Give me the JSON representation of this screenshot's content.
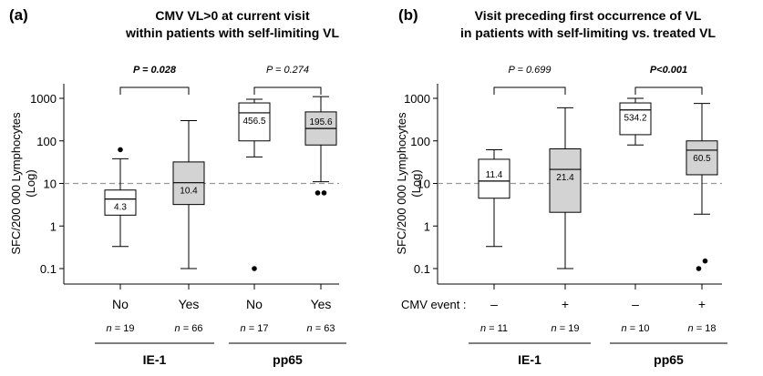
{
  "chart_data": [
    {
      "type": "box",
      "panel_label": "(a)",
      "title_lines": [
        "CMV VL>0 at current visit",
        "within patients with self-limiting VL"
      ],
      "ylabel_lines": [
        "SFC/200 000 Lymphocytes",
        "(Log)"
      ],
      "yscale": "log",
      "ylim": [
        0.06,
        2000
      ],
      "yticks": [
        0.1,
        1,
        10,
        100,
        1000
      ],
      "ytick_labels": [
        "0.1",
        "1",
        "10",
        "100",
        "1000"
      ],
      "reference_line": 10,
      "event_label": "",
      "boxes": [
        {
          "category": "No",
          "n_label": "n = 19",
          "group": "IE-1",
          "fill": "#ffffff",
          "whisker_low": 0.33,
          "q1": 1.8,
          "median": 4.3,
          "q3": 7,
          "whisker_high": 38,
          "median_label": "4.3",
          "outliers": [
            62
          ]
        },
        {
          "category": "Yes",
          "n_label": "n = 66",
          "group": "IE-1",
          "fill": "#d3d3d3",
          "whisker_low": 0.1,
          "q1": 3.2,
          "median": 10.4,
          "q3": 32,
          "whisker_high": 300,
          "median_label": "10.4",
          "outliers": []
        },
        {
          "category": "No",
          "n_label": "n = 17",
          "group": "pp65",
          "fill": "#ffffff",
          "whisker_low": 42,
          "q1": 100,
          "median": 456.5,
          "q3": 780,
          "whisker_high": 950,
          "median_label": "456.5",
          "outliers": [
            0.1
          ]
        },
        {
          "category": "Yes",
          "n_label": "n = 63",
          "group": "pp65",
          "fill": "#d3d3d3",
          "whisker_low": 11,
          "q1": 80,
          "median": 195.6,
          "q3": 480,
          "whisker_high": 1100,
          "median_label": "195.6",
          "outliers": [
            6,
            6
          ]
        }
      ],
      "comparisons": [
        {
          "from": 0,
          "to": 1,
          "label": "P = 0.028",
          "bold": true
        },
        {
          "from": 2,
          "to": 3,
          "label": "P = 0.274",
          "bold": false
        }
      ],
      "groups": [
        "IE-1",
        "pp65"
      ]
    },
    {
      "type": "box",
      "panel_label": "(b)",
      "title_lines": [
        "Visit preceding first occurrence of VL",
        "in patients with self-limiting vs. treated VL"
      ],
      "ylabel_lines": [
        "SFC/200 000 Lymphocytes",
        "(Log)"
      ],
      "yscale": "log",
      "ylim": [
        0.06,
        2000
      ],
      "yticks": [
        0.1,
        1,
        10,
        100,
        1000
      ],
      "ytick_labels": [
        "0.1",
        "1",
        "10",
        "100",
        "1000"
      ],
      "reference_line": 10,
      "event_label": "CMV event :",
      "boxes": [
        {
          "category": "–",
          "n_label": "n = 11",
          "group": "IE-1",
          "fill": "#ffffff",
          "whisker_low": 0.33,
          "q1": 4.5,
          "median": 11.4,
          "q3": 37,
          "whisker_high": 62,
          "median_label": "11.4",
          "outliers": []
        },
        {
          "category": "+",
          "n_label": "n = 19",
          "group": "IE-1",
          "fill": "#d3d3d3",
          "whisker_low": 0.1,
          "q1": 2.1,
          "median": 21.4,
          "q3": 65,
          "whisker_high": 600,
          "median_label": "21.4",
          "outliers": []
        },
        {
          "category": "–",
          "n_label": "n = 10",
          "group": "pp65",
          "fill": "#ffffff",
          "whisker_low": 80,
          "q1": 140,
          "median": 534.2,
          "q3": 780,
          "whisker_high": 1000,
          "median_label": "534.2",
          "outliers": []
        },
        {
          "category": "+",
          "n_label": "n = 18",
          "group": "pp65",
          "fill": "#d3d3d3",
          "whisker_low": 1.9,
          "q1": 16,
          "median": 60.5,
          "q3": 100,
          "whisker_high": 760,
          "median_label": "60.5",
          "outliers": [
            0.1,
            0.13
          ]
        }
      ],
      "comparisons": [
        {
          "from": 0,
          "to": 1,
          "label": "P = 0.699",
          "bold": false
        },
        {
          "from": 2,
          "to": 3,
          "label": "P<0.001",
          "bold": true
        }
      ],
      "groups": [
        "IE-1",
        "pp65"
      ]
    }
  ]
}
